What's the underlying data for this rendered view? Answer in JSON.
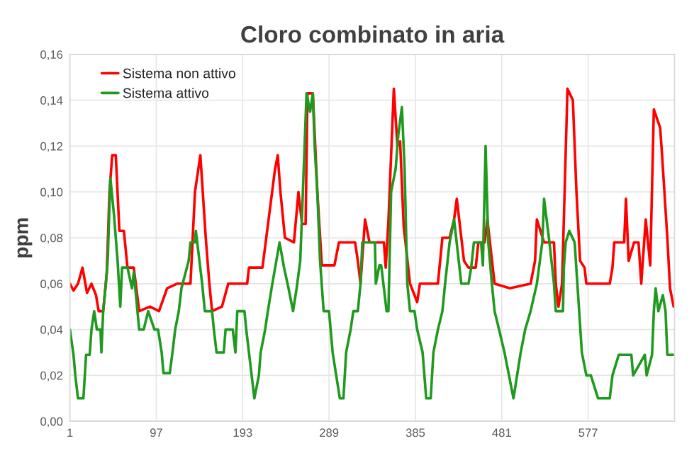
{
  "chart_data": {
    "type": "line",
    "title": "Cloro combinato in aria",
    "ylabel": "ppm",
    "xlim": [
      1,
      673
    ],
    "xticks": [
      1,
      97,
      193,
      289,
      385,
      481,
      577
    ],
    "ylim": [
      0,
      0.16
    ],
    "yticks": [
      {
        "value": 0,
        "label": "0,00"
      },
      {
        "value": 0.02,
        "label": "0,02"
      },
      {
        "value": 0.04,
        "label": "0,04"
      },
      {
        "value": 0.06,
        "label": "0,06"
      },
      {
        "value": 0.08,
        "label": "0,08"
      },
      {
        "value": 0.1,
        "label": "0,10"
      },
      {
        "value": 0.12,
        "label": "0,12"
      },
      {
        "value": 0.14,
        "label": "0,14"
      },
      {
        "value": 0.16,
        "label": "0,16"
      }
    ],
    "grid": true,
    "legend": "top left",
    "marker": "none",
    "line_style": "solid",
    "series": [
      {
        "name": "Sistema non attivo",
        "color": "#ff0000",
        "x": [
          1,
          5,
          10,
          15,
          20,
          25,
          30,
          33,
          38,
          42,
          45,
          48,
          52,
          56,
          61,
          65,
          72,
          78,
          90,
          100,
          109,
          120,
          135,
          140,
          146,
          152,
          156,
          159,
          170,
          177,
          190,
          198,
          200,
          215,
          229,
          232,
          235,
          240,
          250,
          255,
          259,
          263,
          265,
          271,
          276,
          281,
          295,
          300,
          312,
          318,
          321,
          324,
          329,
          334,
          350,
          352,
          355,
          361,
          365,
          368,
          372,
          379,
          387,
          390,
          410,
          415,
          423,
          428,
          431,
          439,
          444,
          452,
          455,
          462,
          465,
          473,
          490,
          513,
          518,
          520,
          528,
          539,
          541,
          544,
          548,
          554,
          560,
          564,
          568,
          573,
          575,
          601,
          604,
          606,
          617,
          619,
          622,
          628,
          633,
          636,
          641,
          646,
          650,
          657,
          659,
          665,
          668,
          672
        ],
        "values": [
          0.06,
          0.057,
          0.06,
          0.067,
          0.056,
          0.06,
          0.055,
          0.048,
          0.048,
          0.065,
          0.1,
          0.116,
          0.116,
          0.083,
          0.083,
          0.067,
          0.067,
          0.048,
          0.05,
          0.048,
          0.058,
          0.06,
          0.06,
          0.1,
          0.116,
          0.08,
          0.06,
          0.048,
          0.05,
          0.06,
          0.06,
          0.06,
          0.067,
          0.067,
          0.11,
          0.116,
          0.1,
          0.08,
          0.078,
          0.1,
          0.086,
          0.086,
          0.143,
          0.143,
          0.1,
          0.068,
          0.068,
          0.078,
          0.078,
          0.078,
          0.07,
          0.06,
          0.088,
          0.078,
          0.078,
          0.067,
          0.087,
          0.145,
          0.12,
          0.122,
          0.085,
          0.06,
          0.052,
          0.06,
          0.06,
          0.08,
          0.08,
          0.088,
          0.097,
          0.07,
          0.067,
          0.067,
          0.078,
          0.078,
          0.088,
          0.06,
          0.058,
          0.06,
          0.07,
          0.088,
          0.078,
          0.078,
          0.06,
          0.05,
          0.06,
          0.145,
          0.14,
          0.1,
          0.07,
          0.067,
          0.06,
          0.06,
          0.067,
          0.078,
          0.078,
          0.097,
          0.07,
          0.078,
          0.078,
          0.06,
          0.088,
          0.068,
          0.136,
          0.128,
          0.117,
          0.08,
          0.058,
          0.05
        ]
      },
      {
        "name": "Sistema attivo",
        "color": "#1f9a1f",
        "x": [
          1,
          5,
          7,
          10,
          16,
          19,
          23,
          25,
          28,
          31,
          35,
          36,
          38,
          41,
          43,
          46,
          50,
          54,
          57,
          59,
          65,
          70,
          72,
          78,
          83,
          88,
          95,
          99,
          103,
          105,
          112,
          115,
          118,
          122,
          125,
          133,
          135,
          140,
          141,
          148,
          151,
          159,
          161,
          164,
          172,
          174,
          182,
          185,
          187,
          195,
          197,
          200,
          206,
          211,
          213,
          218,
          221,
          226,
          234,
          239,
          244,
          249,
          253,
          257,
          259,
          264,
          268,
          271,
          273,
          276,
          279,
          283,
          289,
          293,
          297,
          301,
          305,
          308,
          313,
          316,
          321,
          324,
          326,
          340,
          341,
          345,
          347,
          350,
          353,
          355,
          358,
          363,
          366,
          370,
          373,
          376,
          379,
          384,
          387,
          393,
          397,
          402,
          405,
          410,
          415,
          418,
          423,
          428,
          436,
          444,
          447,
          450,
          458,
          460,
          463,
          466,
          470,
          473,
          478,
          484,
          489,
          494,
          498,
          502,
          507,
          513,
          520,
          526,
          528,
          534,
          539,
          541,
          549,
          550,
          552,
          556,
          562,
          565,
          570,
          575,
          580,
          588,
          601,
          604,
          611,
          625,
          627,
          640,
          642,
          648,
          650,
          652,
          655,
          660,
          663,
          665,
          672
        ],
        "values": [
          0.04,
          0.029,
          0.02,
          0.01,
          0.01,
          0.029,
          0.029,
          0.04,
          0.048,
          0.04,
          0.04,
          0.03,
          0.048,
          0.06,
          0.07,
          0.106,
          0.09,
          0.07,
          0.05,
          0.067,
          0.067,
          0.058,
          0.065,
          0.04,
          0.04,
          0.048,
          0.04,
          0.04,
          0.03,
          0.021,
          0.021,
          0.03,
          0.04,
          0.048,
          0.058,
          0.07,
          0.078,
          0.078,
          0.083,
          0.06,
          0.048,
          0.048,
          0.04,
          0.03,
          0.03,
          0.04,
          0.04,
          0.03,
          0.048,
          0.048,
          0.04,
          0.03,
          0.01,
          0.02,
          0.03,
          0.04,
          0.048,
          0.06,
          0.078,
          0.067,
          0.058,
          0.048,
          0.058,
          0.07,
          0.09,
          0.143,
          0.135,
          0.143,
          0.12,
          0.1,
          0.07,
          0.048,
          0.048,
          0.03,
          0.02,
          0.01,
          0.01,
          0.03,
          0.04,
          0.048,
          0.048,
          0.06,
          0.078,
          0.078,
          0.06,
          0.068,
          0.068,
          0.058,
          0.048,
          0.048,
          0.1,
          0.11,
          0.125,
          0.137,
          0.11,
          0.06,
          0.048,
          0.048,
          0.04,
          0.03,
          0.01,
          0.01,
          0.03,
          0.04,
          0.048,
          0.06,
          0.078,
          0.088,
          0.06,
          0.06,
          0.067,
          0.078,
          0.078,
          0.068,
          0.12,
          0.078,
          0.06,
          0.048,
          0.04,
          0.03,
          0.02,
          0.01,
          0.02,
          0.03,
          0.04,
          0.048,
          0.06,
          0.078,
          0.097,
          0.078,
          0.06,
          0.048,
          0.048,
          0.067,
          0.078,
          0.083,
          0.078,
          0.06,
          0.03,
          0.02,
          0.02,
          0.01,
          0.01,
          0.02,
          0.029,
          0.029,
          0.02,
          0.029,
          0.02,
          0.029,
          0.048,
          0.058,
          0.048,
          0.055,
          0.048,
          0.029,
          0.029
        ]
      }
    ]
  }
}
